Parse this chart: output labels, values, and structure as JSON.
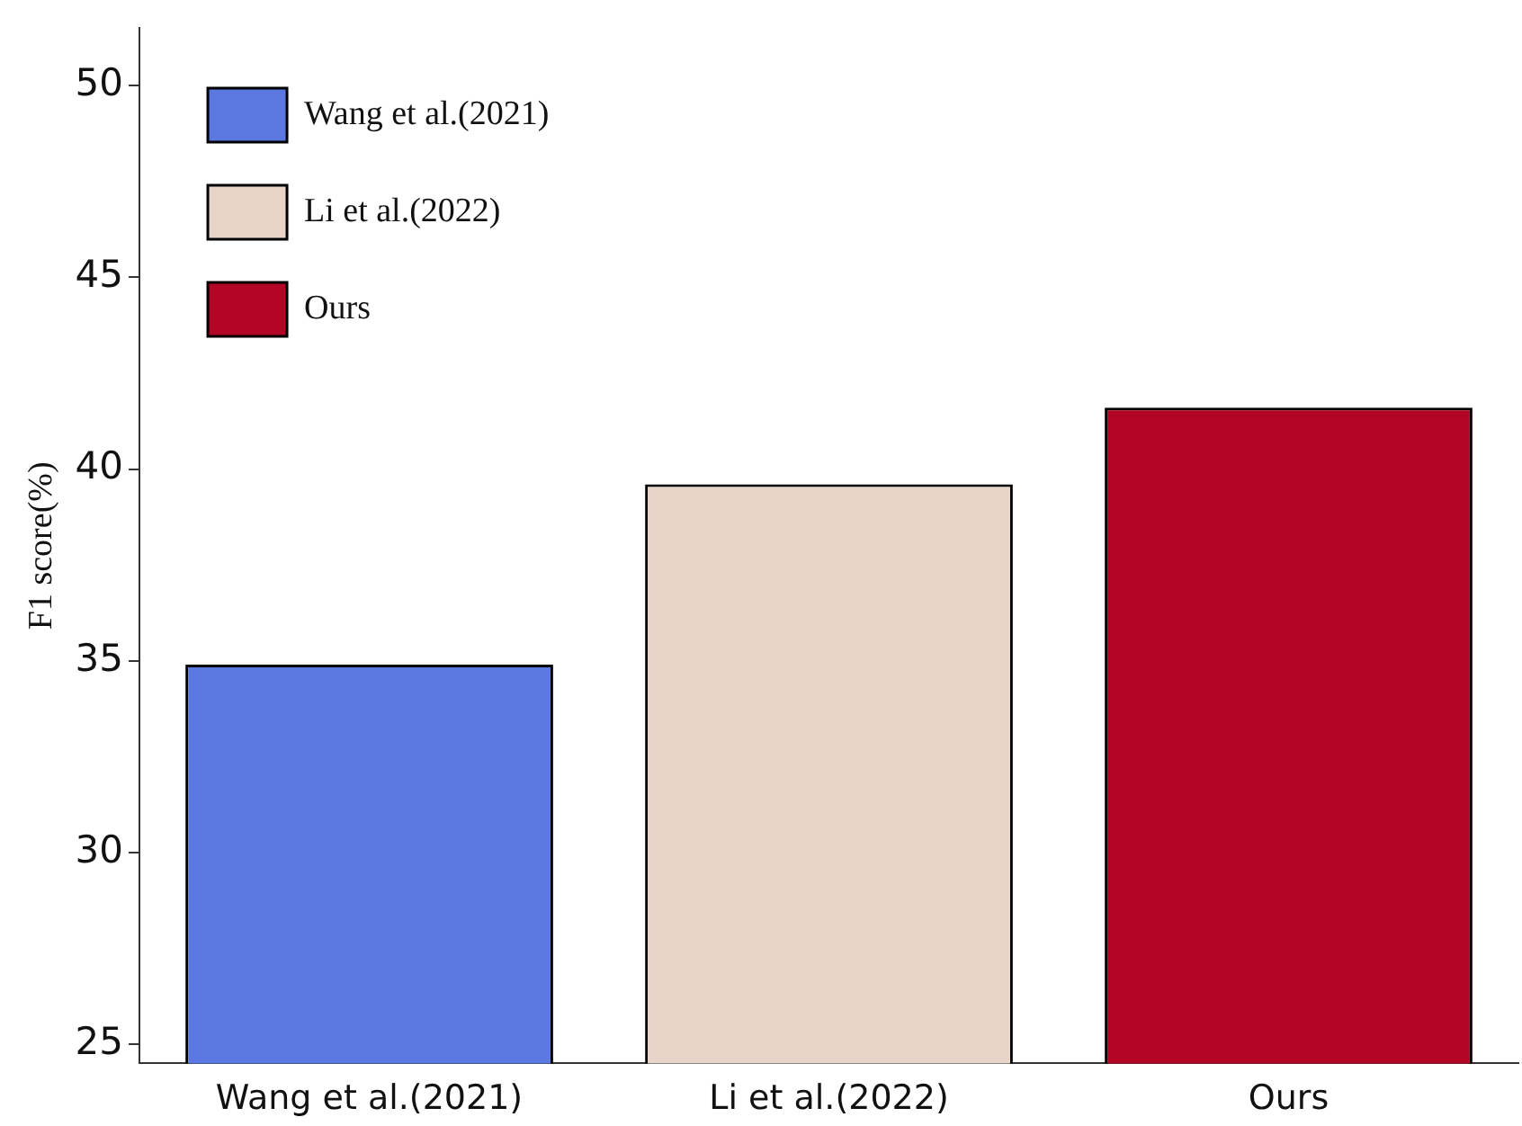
{
  "chart_data": {
    "type": "bar",
    "ylabel": "F1 score(%)",
    "categories": [
      "Wang et al.(2021)",
      "Li et al.(2022)",
      "Ours"
    ],
    "series": [
      {
        "name": "Wang et al.(2021)",
        "color": "#5b78e0",
        "values": [
          34.9,
          null,
          null
        ]
      },
      {
        "name": "Li et al.(2022)",
        "color": "#e8d4c9",
        "values": [
          null,
          39.6,
          null
        ]
      },
      {
        "name": "Ours",
        "color": "#b20425",
        "values": [
          null,
          null,
          41.6
        ]
      }
    ],
    "ylim": [
      24.5,
      51.5
    ],
    "yticks": [
      25,
      30,
      35,
      40,
      45,
      50
    ],
    "grid": false,
    "legend": "top left"
  }
}
